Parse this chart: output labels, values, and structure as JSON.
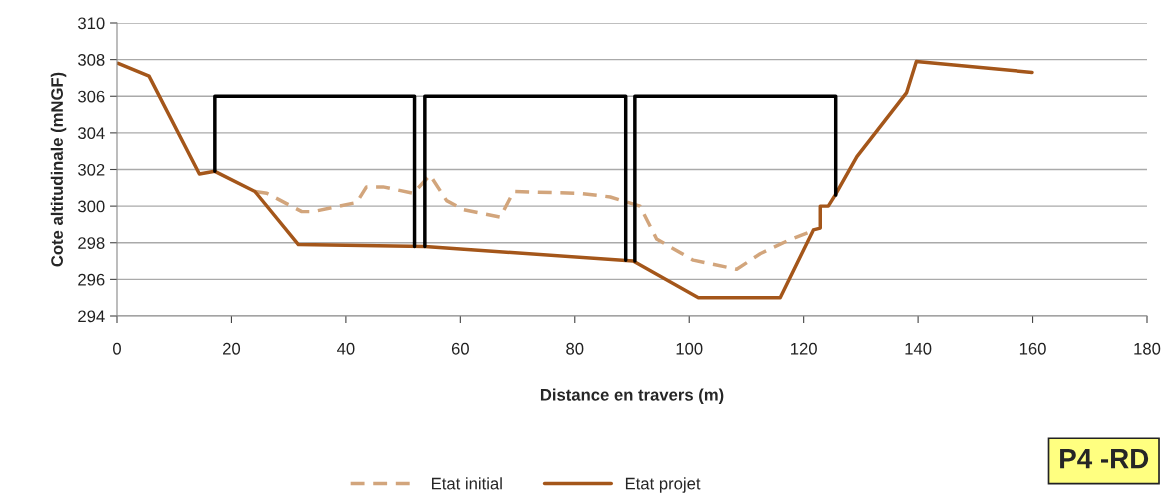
{
  "chart_data": {
    "type": "line",
    "xlabel": "Distance en travers (m)",
    "ylabel": "Cote altitudinale (mNGF)",
    "xlim": [
      0,
      180
    ],
    "xticks": [
      0,
      20,
      40,
      60,
      80,
      100,
      120,
      140,
      160,
      180
    ],
    "ylim": [
      294,
      310
    ],
    "yticks": [
      294,
      296,
      298,
      300,
      302,
      304,
      306,
      308,
      310
    ],
    "grid": "y",
    "legend": "bottom",
    "series": [
      {
        "name": "Etat initial",
        "color": "#d2a57c",
        "line_style": "dashed",
        "x": [
          24.1,
          26.2,
          32.3,
          34.3,
          41.9,
          43.6,
          46.5,
          51.8,
          54.7,
          57.6,
          60.6,
          67.0,
          69.3,
          80.9,
          86.2,
          91.4,
          94.3,
          100.7,
          108.3,
          112.4,
          117.1,
          122.0
        ],
        "values": [
          300.8,
          300.7,
          299.7,
          299.7,
          300.2,
          301.05,
          301.05,
          300.7,
          301.7,
          300.3,
          299.8,
          299.4,
          300.8,
          300.7,
          300.5,
          300.0,
          298.2,
          297.05,
          296.55,
          297.4,
          298.1,
          298.7
        ]
      },
      {
        "name": "Etat projet",
        "color": "#a4561a",
        "line_style": "solid",
        "x": [
          0.2,
          5.6,
          14.4,
          17.1,
          24.1,
          31.7,
          53.8,
          90.2,
          101.6,
          115.9,
          121.7,
          122.9,
          122.9,
          124.3,
          125.5,
          129.3,
          138.0,
          139.7,
          159.9
        ],
        "values": [
          307.8,
          307.1,
          301.75,
          301.9,
          300.8,
          297.9,
          297.8,
          297.0,
          295.0,
          295.0,
          298.7,
          298.8,
          300.0,
          300.0,
          300.6,
          302.7,
          306.2,
          307.9,
          307.3
        ]
      },
      {
        "color": "#000000",
        "line_style": "solid",
        "x": [
          17.1,
          17.1,
          52.0,
          52.0
        ],
        "values": [
          301.9,
          306.0,
          306.0,
          297.8
        ]
      },
      {
        "color": "#000000",
        "line_style": "solid",
        "x": [
          53.8,
          53.8,
          88.9,
          88.9
        ],
        "values": [
          297.8,
          306.0,
          306.0,
          297.05
        ]
      },
      {
        "color": "#000000",
        "line_style": "solid",
        "x": [
          90.5,
          90.5,
          125.6,
          125.6
        ],
        "values": [
          297.0,
          306.0,
          306.0,
          300.6
        ]
      }
    ],
    "annotations": [
      "P4 -RD"
    ]
  }
}
